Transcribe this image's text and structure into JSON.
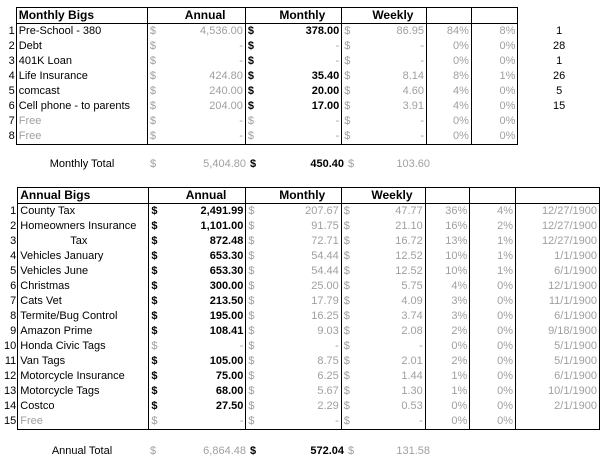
{
  "monthly": {
    "title": "Monthly Bigs",
    "headers": {
      "annual": "Annual",
      "monthly": "Monthly",
      "weekly": "Weekly"
    },
    "rows": [
      {
        "n": "1",
        "name": "Pre-School - 380",
        "a_cur": "$",
        "annual": "4,536.00",
        "m_cur": "$",
        "monthly": "378.00",
        "w_cur": "$",
        "weekly": "86.95",
        "p1": "84%",
        "p2": "8%",
        "extra": "1",
        "grey_name": false
      },
      {
        "n": "2",
        "name": "Debt",
        "a_cur": "$",
        "annual": "-",
        "m_cur": "$",
        "monthly": "-",
        "w_cur": "$",
        "weekly": "-",
        "p1": "0%",
        "p2": "0%",
        "extra": "28",
        "grey_name": false
      },
      {
        "n": "3",
        "name": "401K Loan",
        "a_cur": "$",
        "annual": "-",
        "m_cur": "$",
        "monthly": "-",
        "w_cur": "$",
        "weekly": "-",
        "p1": "0%",
        "p2": "0%",
        "extra": "1",
        "grey_name": false
      },
      {
        "n": "4",
        "name": "Life Insurance",
        "a_cur": "$",
        "annual": "424.80",
        "m_cur": "$",
        "monthly": "35.40",
        "w_cur": "$",
        "weekly": "8.14",
        "p1": "8%",
        "p2": "1%",
        "extra": "26",
        "grey_name": false
      },
      {
        "n": "5",
        "name": "comcast",
        "a_cur": "$",
        "annual": "240.00",
        "m_cur": "$",
        "monthly": "20.00",
        "w_cur": "$",
        "weekly": "4.60",
        "p1": "4%",
        "p2": "0%",
        "extra": "5",
        "grey_name": false
      },
      {
        "n": "6",
        "name": "Cell phone - to parents",
        "a_cur": "$",
        "annual": "204.00",
        "m_cur": "$",
        "monthly": "17.00",
        "w_cur": "$",
        "weekly": "3.91",
        "p1": "4%",
        "p2": "0%",
        "extra": "15",
        "grey_name": false
      },
      {
        "n": "7",
        "name": "Free",
        "a_cur": "$",
        "annual": "-",
        "m_cur": "$",
        "monthly": "-",
        "w_cur": "$",
        "weekly": "-",
        "p1": "0%",
        "p2": "0%",
        "extra": "",
        "grey_name": true
      },
      {
        "n": "8",
        "name": "Free",
        "a_cur": "$",
        "annual": "-",
        "m_cur": "$",
        "monthly": "-",
        "w_cur": "$",
        "weekly": "-",
        "p1": "0%",
        "p2": "0%",
        "extra": "",
        "grey_name": true
      }
    ],
    "total": {
      "label": "Monthly Total",
      "a_cur": "$",
      "annual": "5,404.80",
      "m_cur": "$",
      "monthly": "450.40",
      "w_cur": "$",
      "weekly": "103.60"
    }
  },
  "annual": {
    "title": "Annual Bigs",
    "headers": {
      "annual": "Annual",
      "monthly": "Monthly",
      "weekly": "Weekly"
    },
    "rows": [
      {
        "n": "1",
        "name": "County Tax",
        "a_cur": "$",
        "annual": "2,491.99",
        "m_cur": "$",
        "monthly": "207.67",
        "w_cur": "$",
        "weekly": "47.77",
        "p1": "36%",
        "p2": "4%",
        "date": "12/27/1900",
        "grey_name": false,
        "indent": false
      },
      {
        "n": "2",
        "name": "Homeowners Insurance",
        "a_cur": "$",
        "annual": "1,101.00",
        "m_cur": "$",
        "monthly": "91.75",
        "w_cur": "$",
        "weekly": "21.10",
        "p1": "16%",
        "p2": "2%",
        "date": "12/27/1900",
        "grey_name": false,
        "indent": false
      },
      {
        "n": "3",
        "name": "Tax",
        "a_cur": "$",
        "annual": "872.48",
        "m_cur": "$",
        "monthly": "72.71",
        "w_cur": "$",
        "weekly": "16.72",
        "p1": "13%",
        "p2": "1%",
        "date": "12/27/1900",
        "grey_name": false,
        "indent": true
      },
      {
        "n": "4",
        "name": "Vehicles January",
        "a_cur": "$",
        "annual": "653.30",
        "m_cur": "$",
        "monthly": "54.44",
        "w_cur": "$",
        "weekly": "12.52",
        "p1": "10%",
        "p2": "1%",
        "date": "1/1/1900",
        "grey_name": false,
        "indent": false
      },
      {
        "n": "5",
        "name": "Vehicles June",
        "a_cur": "$",
        "annual": "653.30",
        "m_cur": "$",
        "monthly": "54.44",
        "w_cur": "$",
        "weekly": "12.52",
        "p1": "10%",
        "p2": "1%",
        "date": "6/1/1900",
        "grey_name": false,
        "indent": false
      },
      {
        "n": "6",
        "name": "Christmas",
        "a_cur": "$",
        "annual": "300.00",
        "m_cur": "$",
        "monthly": "25.00",
        "w_cur": "$",
        "weekly": "5.75",
        "p1": "4%",
        "p2": "0%",
        "date": "12/1/1900",
        "grey_name": false,
        "indent": false
      },
      {
        "n": "7",
        "name": "Cats Vet",
        "a_cur": "$",
        "annual": "213.50",
        "m_cur": "$",
        "monthly": "17.79",
        "w_cur": "$",
        "weekly": "4.09",
        "p1": "3%",
        "p2": "0%",
        "date": "11/1/1900",
        "grey_name": false,
        "indent": false
      },
      {
        "n": "8",
        "name": "Termite/Bug Control",
        "a_cur": "$",
        "annual": "195.00",
        "m_cur": "$",
        "monthly": "16.25",
        "w_cur": "$",
        "weekly": "3.74",
        "p1": "3%",
        "p2": "0%",
        "date": "6/1/1900",
        "grey_name": false,
        "indent": false
      },
      {
        "n": "9",
        "name": "Amazon Prime",
        "a_cur": "$",
        "annual": "108.41",
        "m_cur": "$",
        "monthly": "9.03",
        "w_cur": "$",
        "weekly": "2.08",
        "p1": "2%",
        "p2": "0%",
        "date": "9/18/1900",
        "grey_name": false,
        "indent": false
      },
      {
        "n": "10",
        "name": "Honda Civic Tags",
        "a_cur": "$",
        "annual": "-",
        "m_cur": "$",
        "monthly": "-",
        "w_cur": "$",
        "weekly": "-",
        "p1": "0%",
        "p2": "0%",
        "date": "5/1/1900",
        "grey_name": false,
        "indent": false
      },
      {
        "n": "11",
        "name": "Van Tags",
        "a_cur": "$",
        "annual": "105.00",
        "m_cur": "$",
        "monthly": "8.75",
        "w_cur": "$",
        "weekly": "2.01",
        "p1": "2%",
        "p2": "0%",
        "date": "5/1/1900",
        "grey_name": false,
        "indent": false
      },
      {
        "n": "12",
        "name": "Motorcycle Insurance",
        "a_cur": "$",
        "annual": "75.00",
        "m_cur": "$",
        "monthly": "6.25",
        "w_cur": "$",
        "weekly": "1.44",
        "p1": "1%",
        "p2": "0%",
        "date": "6/1/1900",
        "grey_name": false,
        "indent": false
      },
      {
        "n": "13",
        "name": "Motorcycle Tags",
        "a_cur": "$",
        "annual": "68.00",
        "m_cur": "$",
        "monthly": "5.67",
        "w_cur": "$",
        "weekly": "1.30",
        "p1": "1%",
        "p2": "0%",
        "date": "10/1/1900",
        "grey_name": false,
        "indent": false
      },
      {
        "n": "14",
        "name": "Costco",
        "a_cur": "$",
        "annual": "27.50",
        "m_cur": "$",
        "monthly": "2.29",
        "w_cur": "$",
        "weekly": "0.53",
        "p1": "0%",
        "p2": "0%",
        "date": "2/1/1900",
        "grey_name": false,
        "indent": false
      },
      {
        "n": "15",
        "name": "Free",
        "a_cur": "$",
        "annual": "-",
        "m_cur": "$",
        "monthly": "-",
        "w_cur": "$",
        "weekly": "-",
        "p1": "0%",
        "p2": "0%",
        "date": "",
        "grey_name": true,
        "indent": false
      }
    ],
    "total": {
      "label": "Annual Total",
      "a_cur": "$",
      "annual": "6,864.48",
      "m_cur": "$",
      "monthly": "572.04",
      "w_cur": "$",
      "weekly": "131.58"
    }
  }
}
